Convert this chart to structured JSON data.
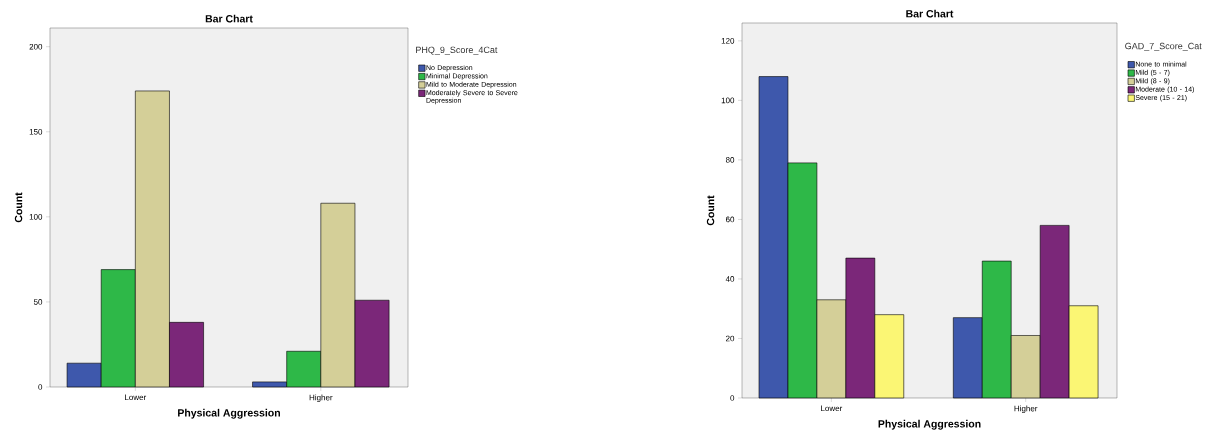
{
  "chart_data": [
    {
      "type": "bar",
      "title": "Bar Chart",
      "xlabel": "Physical Aggression",
      "ylabel": "Count",
      "legend_title": "PHQ_9_Score_4Cat",
      "legend": "right",
      "categories": [
        "Lower",
        "Higher"
      ],
      "ylim": [
        0,
        211
      ],
      "yticks": [
        0,
        50,
        100,
        150,
        200
      ],
      "series": [
        {
          "name": "No Depression",
          "color": "#3e58ac",
          "values": [
            14,
            3
          ]
        },
        {
          "name": "Minimal Depression",
          "color": "#2eb848",
          "values": [
            69,
            21
          ]
        },
        {
          "name": "Mild to Moderate Depression",
          "color": "#d4cf98",
          "values": [
            174,
            108
          ]
        },
        {
          "name": "Moderately Severe to Severe Depression",
          "color": "#7b2779",
          "values": [
            38,
            51
          ]
        }
      ]
    },
    {
      "type": "bar",
      "title": "Bar Chart",
      "xlabel": "Physical Aggression",
      "ylabel": "Count",
      "legend_title": "GAD_7_Score_Cat",
      "legend": "right",
      "categories": [
        "Lower",
        "Higher"
      ],
      "ylim": [
        0,
        126
      ],
      "yticks": [
        0,
        20,
        40,
        60,
        80,
        100,
        120
      ],
      "series": [
        {
          "name": "None to minimal",
          "color": "#3e58ac",
          "values": [
            108,
            27
          ]
        },
        {
          "name": "Mild (5 - 7)",
          "color": "#2eb848",
          "values": [
            79,
            46
          ]
        },
        {
          "name": "Mild (8 - 9)",
          "color": "#d4cf98",
          "values": [
            33,
            21
          ]
        },
        {
          "name": "Moderate (10 - 14)",
          "color": "#7b2779",
          "values": [
            47,
            58
          ]
        },
        {
          "name": "Severe (15 - 21)",
          "color": "#fbf674",
          "values": [
            28,
            31
          ]
        }
      ]
    }
  ]
}
